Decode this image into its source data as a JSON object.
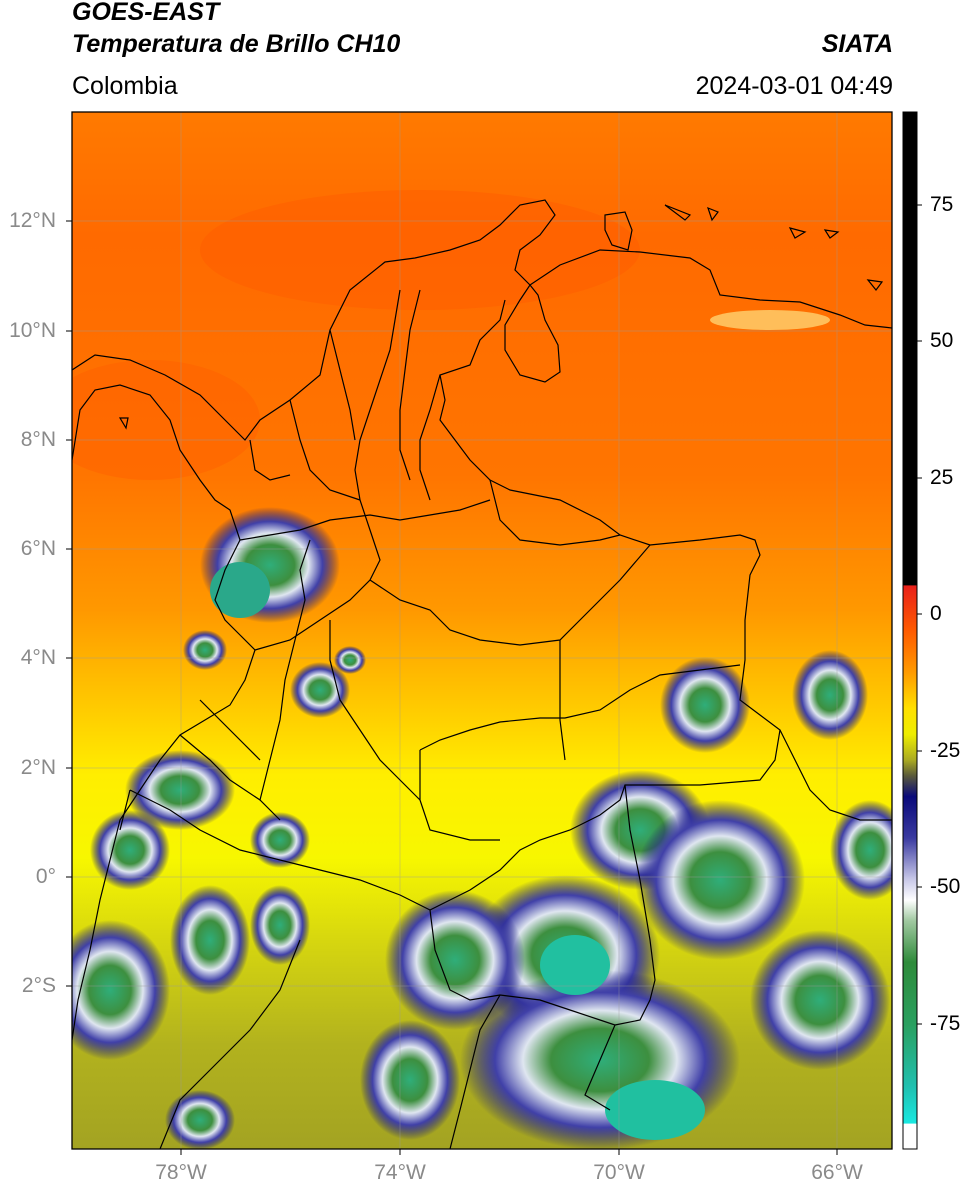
{
  "header": {
    "satellite": "GOES-EAST",
    "product": "Temperatura de Brillo CH10",
    "region": "Colombia",
    "source": "SIATA",
    "datetime": "2024-03-01 04:49"
  },
  "map": {
    "lat_labels": [
      "12°N",
      "10°N",
      "8°N",
      "6°N",
      "4°N",
      "2°N",
      "0°",
      "2°S"
    ],
    "lon_labels": [
      "78°W",
      "74°W",
      "70°W",
      "66°W"
    ],
    "extent": {
      "lon_min": -80,
      "lon_max": -65,
      "lat_min": -5,
      "lat_max": 14
    },
    "lat_values": [
      12,
      10,
      8,
      6,
      4,
      2,
      0,
      -2
    ],
    "lon_values": [
      -78,
      -74,
      -70,
      -66
    ]
  },
  "colorbar": {
    "tick_labels": [
      "75",
      "50",
      "25",
      "0",
      "-25",
      "-50",
      "-75"
    ],
    "tick_values": [
      75,
      50,
      25,
      0,
      -25,
      -50,
      -75
    ],
    "range": [
      -95,
      90
    ],
    "colors": {
      "black": "#000000",
      "red": "#e8201a",
      "orange": "#ff7f00",
      "yellow": "#ffff00",
      "olive": "#a8a820",
      "navy": "#0a0a7a",
      "white": "#ffffff",
      "green": "#2e8b3a",
      "cyan": "#19e0d0"
    }
  }
}
